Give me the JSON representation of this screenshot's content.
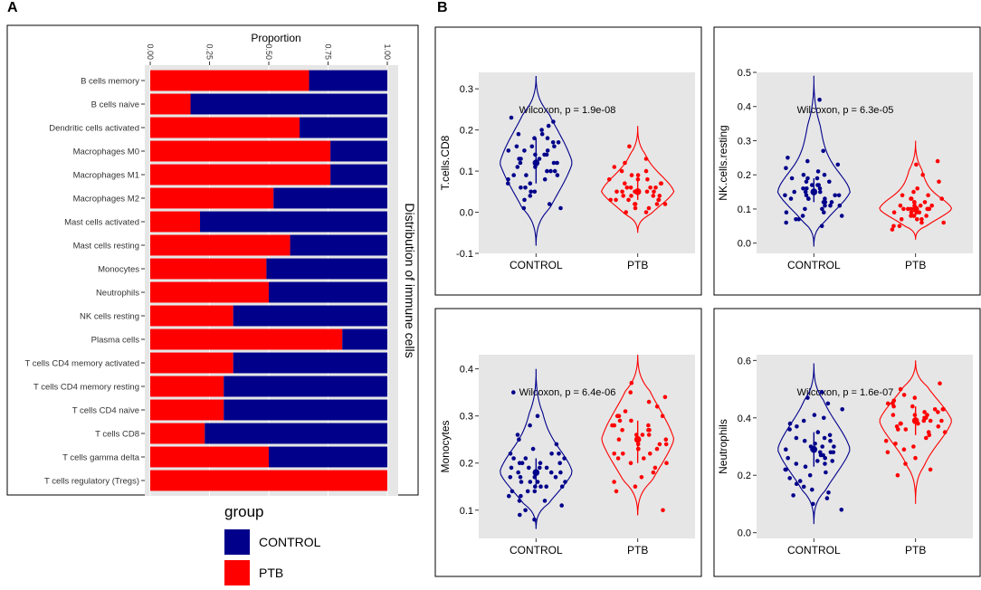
{
  "panels": {
    "a_label": "A",
    "b_label": "B"
  },
  "colors": {
    "control": "#00008B",
    "ptb": "#FF0000",
    "panel_bg": "#E6E6E6",
    "grid": "#FFFFFF"
  },
  "legend": {
    "title": "group",
    "items": [
      {
        "label": "CONTROL",
        "color": "#00008B"
      },
      {
        "label": "PTB",
        "color": "#FF0000"
      }
    ]
  },
  "chart_data": [
    {
      "id": "A",
      "type": "bar",
      "stacked": true,
      "orientation": "horizontal",
      "title": "",
      "xlabel": "Proportion",
      "ylabel": "Distribution of immune cells",
      "xlim": [
        0,
        1
      ],
      "xticks": [
        "0.00",
        "0.25",
        "0.50",
        "0.75",
        "1.00"
      ],
      "categories": [
        "B cells memory",
        "B cells naive",
        "Dendritic cells activated",
        "Macrophages M0",
        "Macrophages M1",
        "Macrophages M2",
        "Mast cells activated",
        "Mast cells resting",
        "Monocytes",
        "Neutrophils",
        "NK cells resting",
        "Plasma cells",
        "T cells CD4 memory activated",
        "T cells CD4 memory resting",
        "T cells CD4 naive",
        "T cells CD8",
        "T cells gamma delta",
        "T cells regulatory (Tregs)"
      ],
      "series": [
        {
          "name": "PTB",
          "values": [
            0.67,
            0.17,
            0.63,
            0.76,
            0.76,
            0.52,
            0.21,
            0.59,
            0.49,
            0.5,
            0.35,
            0.81,
            0.35,
            0.31,
            0.31,
            0.23,
            0.5,
            1.0
          ]
        },
        {
          "name": "CONTROL",
          "values": [
            0.33,
            0.83,
            0.37,
            0.24,
            0.24,
            0.48,
            0.79,
            0.41,
            0.51,
            0.5,
            0.65,
            0.19,
            0.65,
            0.69,
            0.69,
            0.77,
            0.5,
            0.0
          ]
        }
      ]
    },
    {
      "id": "B1",
      "type": "violin",
      "ylabel": "T.cells.CD8",
      "categories": [
        "CONTROL",
        "PTB"
      ],
      "ylim": [
        -0.1,
        0.34
      ],
      "yticks": [
        -0.1,
        0.0,
        0.1,
        0.2,
        0.3
      ],
      "annotation": "Wilcoxon, p = 1.9e-08",
      "groups": [
        {
          "name": "CONTROL",
          "median": 0.12,
          "q1": 0.07,
          "q3": 0.18,
          "min": -0.08,
          "max": 0.33,
          "points": [
            0.23,
            0.22,
            0.21,
            0.2,
            0.19,
            0.19,
            0.18,
            0.18,
            0.17,
            0.17,
            0.16,
            0.16,
            0.15,
            0.15,
            0.14,
            0.14,
            0.13,
            0.13,
            0.12,
            0.12,
            0.12,
            0.11,
            0.11,
            0.1,
            0.1,
            0.09,
            0.09,
            0.08,
            0.08,
            0.07,
            0.07,
            0.06,
            0.06,
            0.05,
            0.05,
            0.04,
            0.03,
            0.02,
            0.01,
            0.01,
            0.14,
            0.13,
            0.09,
            0.1,
            0.15,
            0.16
          ]
        },
        {
          "name": "PTB",
          "median": 0.05,
          "q1": 0.03,
          "q3": 0.08,
          "min": -0.05,
          "max": 0.21,
          "points": [
            0.16,
            0.13,
            0.12,
            0.11,
            0.1,
            0.1,
            0.09,
            0.09,
            0.08,
            0.08,
            0.07,
            0.07,
            0.06,
            0.06,
            0.06,
            0.05,
            0.05,
            0.05,
            0.05,
            0.04,
            0.04,
            0.04,
            0.03,
            0.03,
            0.03,
            0.03,
            0.02,
            0.02,
            0.02,
            0.01,
            0.01,
            0.0,
            0.0,
            0.06,
            0.07,
            0.04,
            0.02,
            0.08,
            0.05,
            0.03
          ]
        }
      ]
    },
    {
      "id": "B2",
      "type": "violin",
      "ylabel": "NK.cells.resting",
      "categories": [
        "CONTROL",
        "PTB"
      ],
      "ylim": [
        -0.03,
        0.5
      ],
      "yticks": [
        0.0,
        0.1,
        0.2,
        0.3,
        0.4,
        0.5
      ],
      "annotation": "Wilcoxon, p = 6.3e-05",
      "groups": [
        {
          "name": "CONTROL",
          "median": 0.15,
          "q1": 0.12,
          "q3": 0.19,
          "min": -0.01,
          "max": 0.49,
          "points": [
            0.42,
            0.27,
            0.25,
            0.24,
            0.23,
            0.22,
            0.21,
            0.2,
            0.2,
            0.19,
            0.19,
            0.18,
            0.18,
            0.17,
            0.17,
            0.16,
            0.16,
            0.16,
            0.15,
            0.15,
            0.15,
            0.14,
            0.14,
            0.14,
            0.13,
            0.13,
            0.13,
            0.12,
            0.12,
            0.12,
            0.11,
            0.11,
            0.1,
            0.1,
            0.09,
            0.09,
            0.08,
            0.08,
            0.07,
            0.07,
            0.06,
            0.05,
            0.17,
            0.15,
            0.13,
            0.11,
            0.19,
            0.14
          ]
        },
        {
          "name": "PTB",
          "median": 0.1,
          "q1": 0.08,
          "q3": 0.12,
          "min": 0.01,
          "max": 0.3,
          "points": [
            0.24,
            0.23,
            0.2,
            0.18,
            0.16,
            0.15,
            0.14,
            0.14,
            0.13,
            0.13,
            0.12,
            0.12,
            0.11,
            0.11,
            0.11,
            0.1,
            0.1,
            0.1,
            0.1,
            0.09,
            0.09,
            0.09,
            0.08,
            0.08,
            0.08,
            0.07,
            0.07,
            0.06,
            0.06,
            0.05,
            0.05,
            0.04,
            0.1,
            0.11,
            0.09,
            0.12,
            0.08,
            0.07,
            0.13,
            0.1
          ]
        }
      ]
    },
    {
      "id": "B3",
      "type": "violin",
      "ylabel": "Monocytes",
      "categories": [
        "CONTROL",
        "PTB"
      ],
      "ylim": [
        0.04,
        0.43
      ],
      "yticks": [
        0.1,
        0.2,
        0.3,
        0.4
      ],
      "annotation": "Wilcoxon, p = 6.4e-06",
      "groups": [
        {
          "name": "CONTROL",
          "median": 0.18,
          "q1": 0.15,
          "q3": 0.21,
          "min": 0.06,
          "max": 0.4,
          "points": [
            0.35,
            0.3,
            0.28,
            0.26,
            0.25,
            0.24,
            0.23,
            0.22,
            0.22,
            0.21,
            0.21,
            0.2,
            0.2,
            0.2,
            0.19,
            0.19,
            0.19,
            0.18,
            0.18,
            0.18,
            0.17,
            0.17,
            0.17,
            0.16,
            0.16,
            0.16,
            0.15,
            0.15,
            0.15,
            0.14,
            0.14,
            0.13,
            0.13,
            0.12,
            0.12,
            0.11,
            0.1,
            0.09,
            0.08,
            0.18,
            0.19,
            0.17,
            0.2,
            0.16,
            0.21,
            0.15,
            0.14,
            0.22
          ]
        },
        {
          "name": "PTB",
          "median": 0.25,
          "q1": 0.2,
          "q3": 0.29,
          "min": 0.09,
          "max": 0.43,
          "points": [
            0.37,
            0.35,
            0.34,
            0.33,
            0.32,
            0.31,
            0.3,
            0.3,
            0.29,
            0.29,
            0.28,
            0.28,
            0.27,
            0.27,
            0.26,
            0.26,
            0.25,
            0.25,
            0.25,
            0.24,
            0.24,
            0.23,
            0.23,
            0.22,
            0.22,
            0.21,
            0.21,
            0.2,
            0.2,
            0.19,
            0.18,
            0.17,
            0.16,
            0.15,
            0.14,
            0.1,
            0.26,
            0.24,
            0.27,
            0.22,
            0.28,
            0.23,
            0.3
          ]
        }
      ]
    },
    {
      "id": "B4",
      "type": "violin",
      "ylabel": "Neutrophils",
      "categories": [
        "CONTROL",
        "PTB"
      ],
      "ylim": [
        -0.02,
        0.62
      ],
      "yticks": [
        0.0,
        0.2,
        0.4,
        0.6
      ],
      "annotation": "Wilcoxon, p = 1.6e-07",
      "groups": [
        {
          "name": "CONTROL",
          "median": 0.29,
          "q1": 0.23,
          "q3": 0.35,
          "min": 0.03,
          "max": 0.59,
          "points": [
            0.49,
            0.47,
            0.45,
            0.43,
            0.41,
            0.4,
            0.39,
            0.38,
            0.37,
            0.36,
            0.35,
            0.34,
            0.33,
            0.32,
            0.32,
            0.31,
            0.3,
            0.3,
            0.29,
            0.29,
            0.28,
            0.28,
            0.27,
            0.27,
            0.26,
            0.25,
            0.25,
            0.24,
            0.23,
            0.22,
            0.22,
            0.21,
            0.2,
            0.19,
            0.18,
            0.17,
            0.16,
            0.15,
            0.14,
            0.13,
            0.12,
            0.1,
            0.08,
            0.3,
            0.28,
            0.33,
            0.26,
            0.24
          ]
        },
        {
          "name": "PTB",
          "median": 0.39,
          "q1": 0.34,
          "q3": 0.44,
          "min": 0.1,
          "max": 0.6,
          "points": [
            0.52,
            0.5,
            0.48,
            0.47,
            0.46,
            0.45,
            0.45,
            0.44,
            0.43,
            0.43,
            0.42,
            0.42,
            0.41,
            0.41,
            0.4,
            0.4,
            0.39,
            0.39,
            0.38,
            0.38,
            0.37,
            0.37,
            0.36,
            0.35,
            0.35,
            0.34,
            0.33,
            0.32,
            0.31,
            0.3,
            0.29,
            0.28,
            0.26,
            0.24,
            0.22,
            0.2,
            0.41,
            0.39,
            0.43,
            0.36,
            0.44,
            0.38
          ]
        }
      ]
    }
  ]
}
